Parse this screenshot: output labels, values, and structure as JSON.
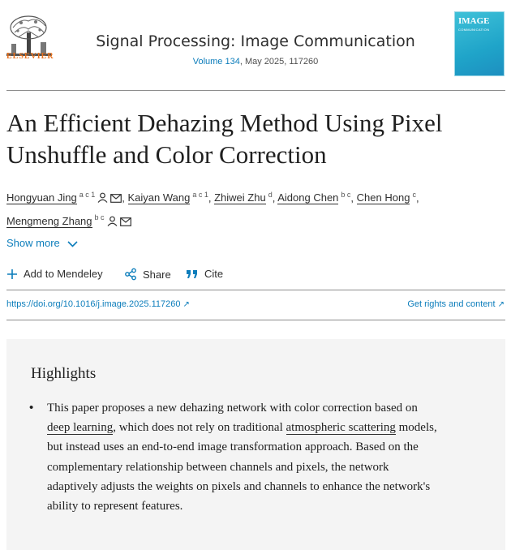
{
  "header": {
    "publisher": "ELSEVIER",
    "journal": "Signal Processing: Image Communication",
    "volume_link": "Volume 134",
    "issue_rest": ", May 2025, 117260",
    "cover": {
      "title": "IMAGE",
      "subtitle": "COMMUNICATION"
    }
  },
  "article": {
    "title": "An Efficient Dehazing Method Using Pixel Unshuffle and Color Correction",
    "authors": [
      {
        "name": "Hongyuan Jing",
        "sup": "a c 1",
        "person": true,
        "mail": true,
        "sep": ","
      },
      {
        "name": "Kaiyan Wang",
        "sup": "a c 1",
        "person": false,
        "mail": false,
        "sep": ","
      },
      {
        "name": "Zhiwei Zhu",
        "sup": "d",
        "person": false,
        "mail": false,
        "sep": ","
      },
      {
        "name": "Aidong Chen",
        "sup": "b c",
        "person": false,
        "mail": false,
        "sep": ","
      },
      {
        "name": "Chen Hong",
        "sup": "c",
        "person": false,
        "mail": false,
        "sep": ","
      },
      {
        "name": "Mengmeng Zhang",
        "sup": "b c",
        "person": true,
        "mail": true,
        "sep": ""
      }
    ],
    "show_more": "Show more",
    "actions": {
      "mendeley": "Add to Mendeley",
      "share": "Share",
      "cite": "Cite"
    },
    "doi": "https://doi.org/10.1016/j.image.2025.117260",
    "rights": "Get rights and content"
  },
  "highlights": {
    "heading": "Highlights",
    "item": {
      "t1": "This paper proposes a new dehazing network with color correction based on ",
      "link1": "deep learning",
      "t2": ", which does not rely on traditional ",
      "link2": "atmospheric scattering",
      "t3": " models, but instead uses an end-to-end image transformation approach. Based on the complementary relationship between channels and pixels, the network adaptively adjusts the weights on pixels and channels to enhance the network's ability to represent features."
    }
  },
  "colors": {
    "link": "#0c7dbb",
    "accent": "#e9711c",
    "panel": "#f4f4f4"
  },
  "icons": [
    "elsevier-tree-logo",
    "person-icon",
    "mail-icon",
    "chevron-down-icon",
    "plus-icon",
    "share-icon",
    "quote-icon",
    "external-arrow-icon"
  ]
}
